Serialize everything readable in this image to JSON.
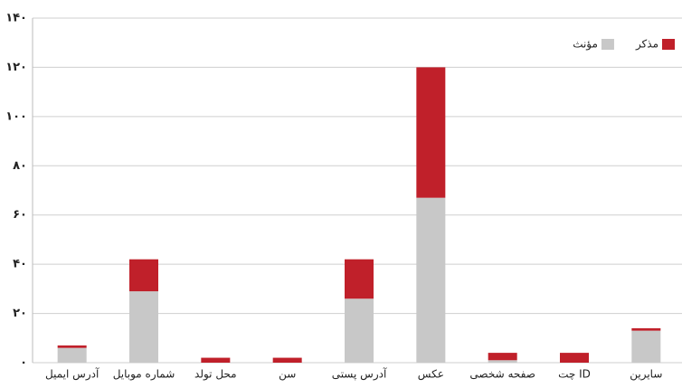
{
  "chart_data": {
    "type": "stacked_bar",
    "categories": [
      "آدرس ایمیل",
      "شماره موبایل",
      "محل تولد",
      "سن",
      "آدرس پستی",
      "عکس",
      "صفحه شخصی",
      "ID چت",
      "سایرین"
    ],
    "series": [
      {
        "name": "مؤنث",
        "color": "#c8c8c8",
        "values": [
          6,
          29,
          0,
          0,
          26,
          67,
          1,
          0,
          13
        ]
      },
      {
        "name": "مذکر",
        "color": "#c0202a",
        "values": [
          1,
          13,
          2,
          2,
          16,
          53,
          3,
          4,
          1
        ]
      }
    ],
    "ylim": [
      0,
      140
    ],
    "yticks": [
      {
        "value": 0,
        "label": "۰"
      },
      {
        "value": 20,
        "label": "۲۰"
      },
      {
        "value": 40,
        "label": "۴۰"
      },
      {
        "value": 60,
        "label": "۶۰"
      },
      {
        "value": 80,
        "label": "۸۰"
      },
      {
        "value": 100,
        "label": "۱۰۰"
      },
      {
        "value": 120,
        "label": "۱۲۰"
      },
      {
        "value": 140,
        "label": "۱۴۰"
      }
    ],
    "grid": true,
    "legend": "top-right"
  }
}
